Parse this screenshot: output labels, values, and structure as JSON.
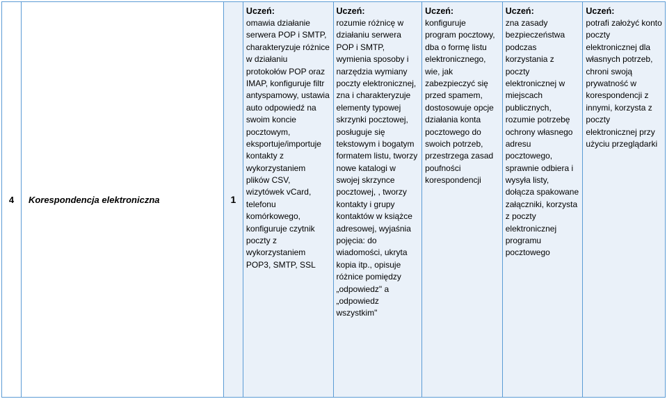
{
  "row": {
    "number": "4",
    "topic": "Korespondencja elektroniczna",
    "hours": "1",
    "student_header": "Uczeń:",
    "levels": [
      "omawia działanie serwera POP i SMTP, charakteryzuje różnice w działaniu protokołów POP oraz IMAP, konfiguruje filtr antyspamowy, ustawia auto odpowiedź na swoim koncie pocztowym, eksportuje/importuje kontakty z wykorzystaniem plików CSV, wizytówek vCard, telefonu komórkowego, konfiguruje czytnik poczty z wykorzystaniem POP3, SMTP, SSL",
      "rozumie różnicę w działaniu serwera POP i SMTP, wymienia sposoby i narzędzia wymiany poczty elektronicznej, zna i charakteryzuje elementy typowej skrzynki pocztowej, posługuje się tekstowym i bogatym formatem listu, tworzy nowe katalogi w swojej skrzynce pocztowej, , tworzy kontakty i grupy kontaktów w książce adresowej, wyjaśnia pojęcia: do wiadomości, ukryta kopia itp., opisuje różnice pomiędzy „odpowiedz\" a „odpowiedz wszystkim\"",
      "konfiguruje program pocztowy, dba o formę listu elektronicznego, wie, jak zabezpieczyć się przed spamem, dostosowuje opcje działania konta pocztowego do swoich potrzeb, przestrzega zasad poufności korespondencji",
      "zna zasady bezpieczeństwa podczas korzystania z poczty elektronicznej w miejscach publicznych, rozumie potrzebę ochrony własnego adresu pocztowego, sprawnie odbiera i wysyła listy, dołącza spakowane załączniki, korzysta z poczty elektronicznej programu pocztowego",
      "potrafi założyć konto poczty elektronicznej dla własnych potrzeb, chroni swoją prywatność w korespondencji z innymi, korzysta z poczty elektronicznej przy użyciu przeglądarki"
    ]
  },
  "style": {
    "border_color": "#5b9bd5",
    "shaded_bg": "#eaf1f9",
    "plain_bg": "#ffffff",
    "font_family": "Arial",
    "font_size_body": 12,
    "font_size_bold": 13,
    "line_height": 1.45
  }
}
